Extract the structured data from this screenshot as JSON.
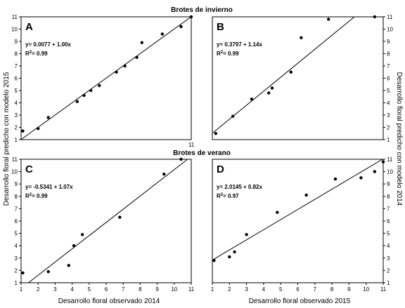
{
  "labels": {
    "top_section_title": "Brotes de invierno",
    "bottom_section_title": "Brotes de verano",
    "ylabel_left": "Desarrollo floral predicho con modelo 2015",
    "ylabel_right": "Desarrollo floral predicho con modelo 2014",
    "xlabel_left": "Desarrollo floral observado 2014",
    "xlabel_right": "Desarrollo floral observado 2015"
  },
  "colors": {
    "axis": "#000000",
    "points": "#000000",
    "fit_line": "#000000",
    "background": "#ffffff"
  },
  "chart_data": [
    {
      "type": "scatter",
      "panel": "A",
      "equation": "y= 0.0077 + 1.00x",
      "r2_label": "R",
      "r2_sup": "2",
      "r2_value": "= 0.99",
      "fit": {
        "intercept": 0.0077,
        "slope": 1.0
      },
      "xlim": [
        1,
        11
      ],
      "ylim": [
        1,
        11
      ],
      "xticks": [],
      "yticks": [
        "1",
        "2",
        "3",
        "4",
        "5",
        "6",
        "7",
        "8",
        "9",
        "10",
        "11"
      ],
      "points": [
        [
          1.1,
          1.7
        ],
        [
          2.0,
          1.9
        ],
        [
          2.6,
          2.8
        ],
        [
          4.3,
          4.1
        ],
        [
          4.7,
          4.6
        ],
        [
          5.1,
          5.0
        ],
        [
          5.6,
          5.4
        ],
        [
          6.6,
          6.5
        ],
        [
          7.1,
          7.0
        ],
        [
          7.8,
          7.7
        ],
        [
          8.1,
          8.9
        ],
        [
          9.3,
          9.6
        ],
        [
          10.4,
          10.2
        ],
        [
          11.0,
          11.0
        ]
      ],
      "x_max_value": 11
    },
    {
      "type": "scatter",
      "panel": "B",
      "equation": "y= 0.3797 + 1.14x",
      "r2_label": "R",
      "r2_sup": "2",
      "r2_value": "= 0.99",
      "fit": {
        "intercept": 0.3797,
        "slope": 1.14
      },
      "xlim": [
        1,
        11
      ],
      "ylim": [
        1,
        11
      ],
      "xticks": [],
      "yticks": [
        "1",
        "2",
        "3",
        "4",
        "5",
        "6",
        "7",
        "8",
        "9",
        "10",
        "11"
      ],
      "points": [
        [
          1.2,
          1.5
        ],
        [
          2.2,
          2.9
        ],
        [
          3.3,
          4.3
        ],
        [
          4.3,
          4.8
        ],
        [
          4.5,
          5.2
        ],
        [
          5.6,
          6.5
        ],
        [
          6.2,
          9.3
        ],
        [
          7.8,
          10.8
        ],
        [
          10.5,
          11.0
        ]
      ]
    },
    {
      "type": "scatter",
      "panel": "C",
      "equation": "y= -0.5341 + 1.07x",
      "r2_label": "R",
      "r2_sup": "2",
      "r2_value": "= 0.99",
      "fit": {
        "intercept": -0.5341,
        "slope": 1.07
      },
      "xlim": [
        1,
        11
      ],
      "ylim": [
        1,
        11
      ],
      "xticks": [
        "1",
        "2",
        "3",
        "4",
        "5",
        "6",
        "7",
        "8",
        "9",
        "10",
        "11"
      ],
      "yticks": [
        "1",
        "2",
        "3",
        "4",
        "5",
        "6",
        "7",
        "8",
        "9",
        "10",
        "11"
      ],
      "points": [
        [
          1.1,
          1.8
        ],
        [
          2.6,
          1.9
        ],
        [
          3.8,
          2.4
        ],
        [
          4.1,
          4.0
        ],
        [
          4.6,
          4.9
        ],
        [
          6.8,
          6.3
        ],
        [
          9.4,
          9.8
        ],
        [
          10.4,
          11.0
        ]
      ]
    },
    {
      "type": "scatter",
      "panel": "D",
      "equation": "y= 2.0145 + 0.82x",
      "r2_label": "R",
      "r2_sup": "2",
      "r2_value": "= 0.97",
      "fit": {
        "intercept": 2.0145,
        "slope": 0.82
      },
      "xlim": [
        1,
        11
      ],
      "ylim": [
        1,
        11
      ],
      "xticks": [
        "1",
        "2",
        "3",
        "4",
        "5",
        "6",
        "7",
        "8",
        "9",
        "10",
        "11"
      ],
      "yticks": [
        "1",
        "2",
        "3",
        "4",
        "5",
        "6",
        "7",
        "8",
        "9",
        "10",
        "11"
      ],
      "points": [
        [
          1.1,
          2.8
        ],
        [
          2.0,
          3.1
        ],
        [
          2.3,
          3.5
        ],
        [
          3.0,
          4.9
        ],
        [
          4.8,
          6.7
        ],
        [
          6.5,
          8.1
        ],
        [
          8.2,
          9.4
        ],
        [
          9.7,
          9.5
        ],
        [
          10.5,
          10.0
        ],
        [
          11.0,
          10.8
        ]
      ]
    }
  ]
}
